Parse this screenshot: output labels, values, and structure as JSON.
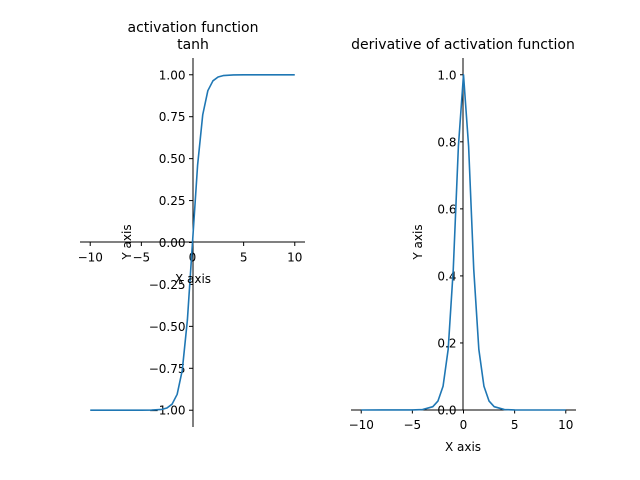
{
  "colors": {
    "series": "#1f77b4",
    "axis": "#000000",
    "background": "#ffffff"
  },
  "chart_data": [
    {
      "type": "line",
      "title": "activation function\ntanh",
      "xlabel": "X axis",
      "ylabel": "Y axis",
      "xlim": [
        -11,
        11
      ],
      "ylim": [
        -1.1,
        1.1
      ],
      "xticks": [
        -10,
        -5,
        0,
        5,
        10
      ],
      "xtick_labels": [
        "−10",
        "−5",
        "0",
        "5",
        "10"
      ],
      "yticks": [
        -1.0,
        -0.75,
        -0.5,
        -0.25,
        0.0,
        0.25,
        0.5,
        0.75,
        1.0
      ],
      "ytick_labels": [
        "−1.00",
        "−0.75",
        "−0.50",
        "−0.25",
        "0.00",
        "0.25",
        "0.50",
        "0.75",
        "1.00"
      ],
      "grid": false,
      "spines": "centered at origin",
      "series": [
        {
          "x": [
            -10,
            -5,
            -4,
            -3,
            -2.5,
            -2,
            -1.5,
            -1,
            -0.5,
            0,
            0.5,
            1,
            1.5,
            2,
            2.5,
            3,
            4,
            5,
            10
          ],
          "y": [
            -1.0,
            -0.9999,
            -0.9993,
            -0.9951,
            -0.9866,
            -0.964,
            -0.9051,
            -0.7616,
            -0.4621,
            0.0,
            0.4621,
            0.7616,
            0.9051,
            0.964,
            0.9866,
            0.9951,
            0.9993,
            0.9999,
            1.0
          ]
        }
      ]
    },
    {
      "type": "line",
      "title": "derivative of activation function",
      "xlabel": "X axis",
      "ylabel": "Y axis",
      "xlim": [
        -11,
        11
      ],
      "ylim": [
        0,
        1.05
      ],
      "xticks": [
        -10,
        -5,
        0,
        5,
        10
      ],
      "xtick_labels": [
        "−10",
        "−5",
        "0",
        "5",
        "10"
      ],
      "yticks": [
        0.0,
        0.2,
        0.4,
        0.6,
        0.8,
        1.0
      ],
      "ytick_labels": [
        "0.0",
        "0.2",
        "0.4",
        "0.6",
        "0.8",
        "1.0"
      ],
      "grid": false,
      "spines": "centered at origin",
      "series": [
        {
          "x": [
            -10,
            -5,
            -4,
            -3,
            -2.5,
            -2,
            -1.5,
            -1,
            -0.5,
            0,
            0.5,
            1,
            1.5,
            2,
            2.5,
            3,
            4,
            5,
            10
          ],
          "y": [
            0.0,
            0.0002,
            0.0013,
            0.0099,
            0.0266,
            0.0707,
            0.1807,
            0.42,
            0.7864,
            1.0,
            0.7864,
            0.42,
            0.1807,
            0.0707,
            0.0266,
            0.0099,
            0.0013,
            0.0002,
            0.0
          ]
        }
      ]
    }
  ]
}
